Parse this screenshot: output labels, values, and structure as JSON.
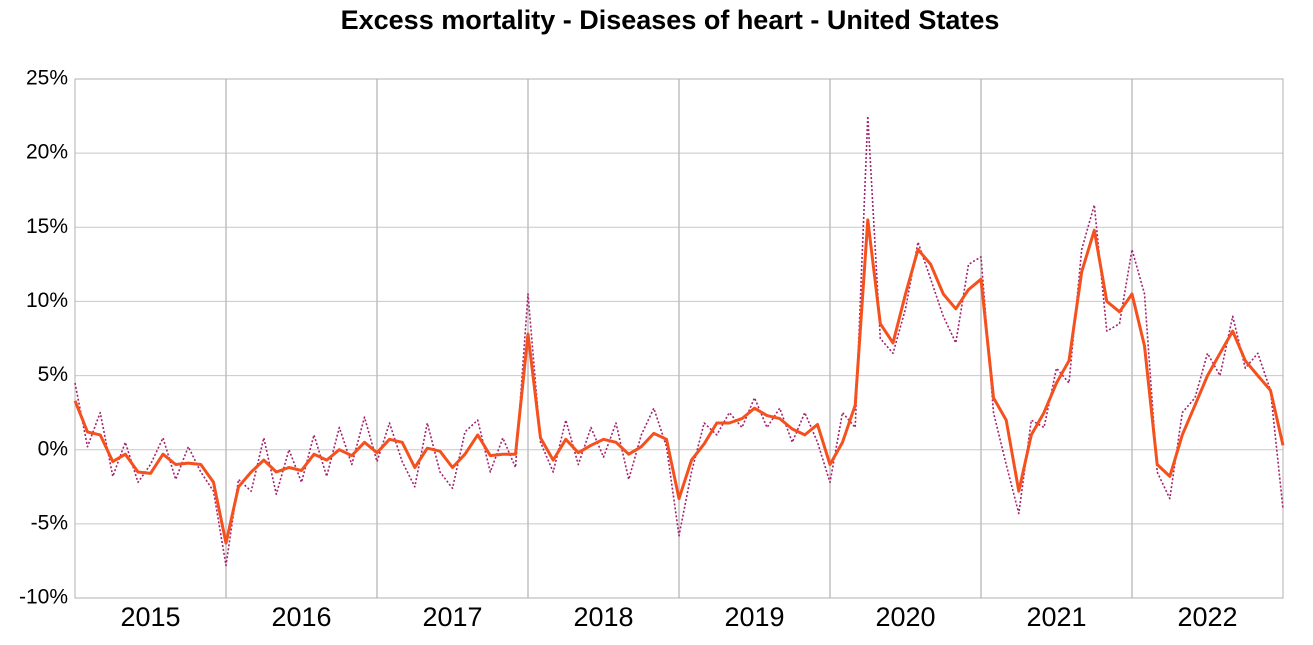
{
  "chart_data": {
    "type": "line",
    "title": "Excess mortality - Diseases of heart - United States",
    "categories": [
      "2015",
      "2016",
      "2017",
      "2018",
      "2019",
      "2020",
      "2021",
      "2022"
    ],
    "x": [
      2015,
      2015.083,
      2015.167,
      2015.25,
      2015.333,
      2015.417,
      2015.5,
      2015.583,
      2015.667,
      2015.75,
      2015.833,
      2015.917,
      2016,
      2016.083,
      2016.167,
      2016.25,
      2016.333,
      2016.417,
      2016.5,
      2016.583,
      2016.667,
      2016.75,
      2016.833,
      2016.917,
      2017,
      2017.083,
      2017.167,
      2017.25,
      2017.333,
      2017.417,
      2017.5,
      2017.583,
      2017.667,
      2017.75,
      2017.833,
      2017.917,
      2018,
      2018.083,
      2018.167,
      2018.25,
      2018.333,
      2018.417,
      2018.5,
      2018.583,
      2018.667,
      2018.75,
      2018.833,
      2018.917,
      2019,
      2019.083,
      2019.167,
      2019.25,
      2019.333,
      2019.417,
      2019.5,
      2019.583,
      2019.667,
      2019.75,
      2019.833,
      2019.917,
      2020,
      2020.083,
      2020.167,
      2020.25,
      2020.333,
      2020.417,
      2020.5,
      2020.583,
      2020.667,
      2020.75,
      2020.833,
      2020.917,
      2021,
      2021.083,
      2021.167,
      2021.25,
      2021.333,
      2021.417,
      2021.5,
      2021.583,
      2021.667,
      2021.75,
      2021.833,
      2021.917,
      2022,
      2022.083,
      2022.167,
      2022.25,
      2022.333,
      2022.417,
      2022.5,
      2022.583,
      2022.667,
      2022.75,
      2022.833,
      2022.917,
      2023
    ],
    "series": [
      {
        "color": "#a3236f",
        "dash": "dotted",
        "values": [
          4.5,
          0.2,
          2.5,
          -1.8,
          0.5,
          -2.2,
          -1.0,
          0.8,
          -2.0,
          0.2,
          -1.5,
          -2.8,
          -7.8,
          -2.0,
          -2.8,
          0.8,
          -3.0,
          0.0,
          -2.2,
          1.0,
          -1.8,
          1.5,
          -1.0,
          2.2,
          -0.8,
          1.8,
          -0.8,
          -2.5,
          1.8,
          -1.5,
          -2.6,
          1.2,
          2.0,
          -1.5,
          0.8,
          -1.2,
          10.5,
          0.5,
          -1.5,
          2.0,
          -1.0,
          1.5,
          -0.5,
          1.8,
          -2.0,
          1.0,
          2.8,
          0.2,
          -5.8,
          -1.5,
          1.8,
          1.0,
          2.5,
          1.5,
          3.5,
          1.5,
          2.8,
          0.5,
          2.5,
          0.5,
          -2.2,
          2.5,
          1.5,
          22.5,
          7.5,
          6.5,
          9.5,
          14.0,
          11.5,
          9.0,
          7.2,
          12.5,
          13.0,
          2.5,
          -1.0,
          -4.3,
          2.0,
          1.5,
          5.5,
          4.5,
          13.5,
          16.5,
          8.0,
          8.5,
          13.5,
          10.5,
          -1.5,
          -3.3,
          2.5,
          3.5,
          6.5,
          5.0,
          9.0,
          5.5,
          6.5,
          4.0,
          -4.0
        ]
      },
      {
        "color": "#f4511e",
        "dash": "solid",
        "values": [
          3.3,
          1.2,
          1.0,
          -0.8,
          -0.3,
          -1.5,
          -1.6,
          -0.3,
          -1.0,
          -0.9,
          -1.0,
          -2.2,
          -6.3,
          -2.5,
          -1.5,
          -0.7,
          -1.5,
          -1.2,
          -1.4,
          -0.3,
          -0.7,
          0.0,
          -0.4,
          0.5,
          -0.2,
          0.7,
          0.5,
          -1.2,
          0.1,
          -0.1,
          -1.2,
          -0.3,
          1.0,
          -0.4,
          -0.3,
          -0.3,
          7.8,
          0.8,
          -0.7,
          0.7,
          -0.2,
          0.3,
          0.7,
          0.5,
          -0.3,
          0.2,
          1.1,
          0.7,
          -3.3,
          -0.7,
          0.4,
          1.8,
          1.8,
          2.1,
          2.8,
          2.3,
          2.1,
          1.4,
          1.0,
          1.7,
          -1.0,
          0.5,
          3.0,
          15.5,
          8.5,
          7.2,
          10.5,
          13.5,
          12.5,
          10.5,
          9.5,
          10.8,
          11.5,
          3.5,
          2.0,
          -2.8,
          1.0,
          2.5,
          4.5,
          6.0,
          12.0,
          14.8,
          10.0,
          9.3,
          10.5,
          7.0,
          -1.0,
          -1.8,
          1.0,
          3.0,
          5.0,
          6.5,
          8.0,
          6.0,
          5.0,
          4.0,
          0.3
        ]
      }
    ],
    "xlim": [
      2015,
      2023
    ],
    "ylim": [
      -10,
      25
    ],
    "yticks": [
      {
        "value": -10,
        "label": "-10%"
      },
      {
        "value": -5,
        "label": "-5%"
      },
      {
        "value": 0,
        "label": "0%"
      },
      {
        "value": 5,
        "label": "5%"
      },
      {
        "value": 10,
        "label": "10%"
      },
      {
        "value": 15,
        "label": "15%"
      },
      {
        "value": 20,
        "label": "20%"
      },
      {
        "value": 25,
        "label": "25%"
      }
    ],
    "grid": true
  }
}
